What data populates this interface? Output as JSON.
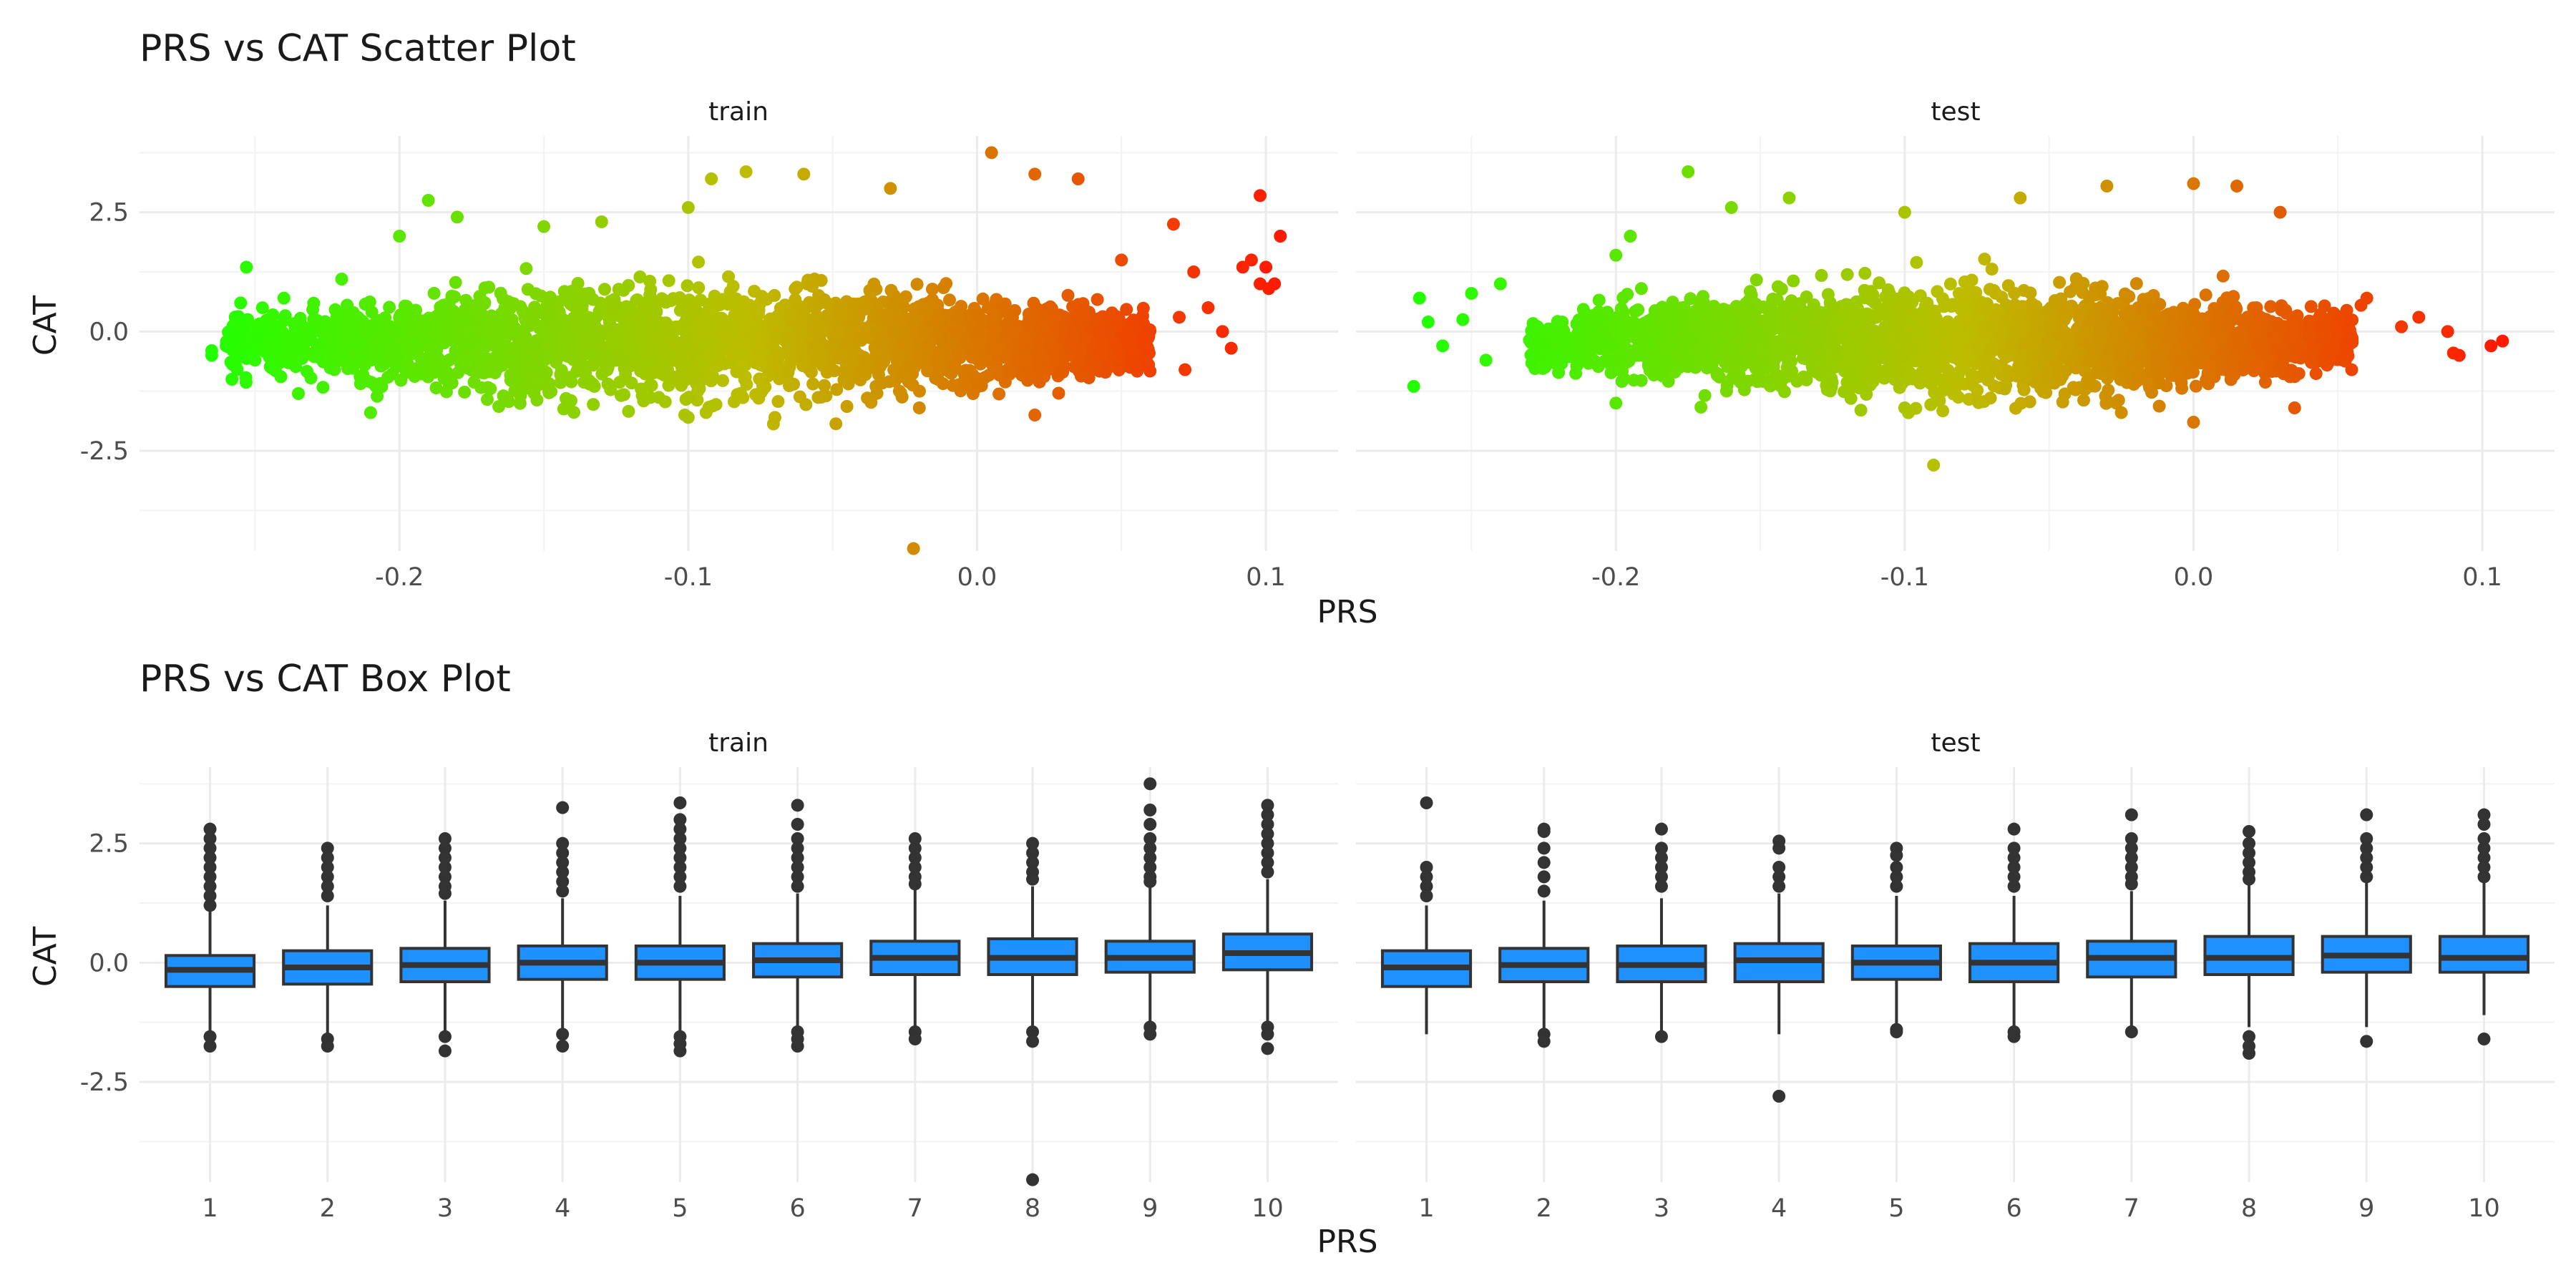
{
  "chart_data": [
    {
      "type": "scatter",
      "title": "PRS vs CAT Scatter Plot",
      "xlabel": "PRS",
      "ylabel": "CAT",
      "ylim": [
        -4.6,
        4.1
      ],
      "y_ticks": [
        "2.5",
        "0.0",
        "-2.5"
      ],
      "y_tick_values": [
        2.5,
        0.0,
        -2.5
      ],
      "grid": true,
      "color_scale": {
        "low": "#22ff00",
        "mid": "#bdbd00",
        "high": "#ff1a00",
        "domain": [
          -0.265,
          0.105
        ]
      },
      "panels": [
        {
          "label": "train",
          "xlim": [
            -0.29,
            0.125
          ],
          "x_ticks": [
            "-0.2",
            "-0.1",
            "0.0",
            "0.1"
          ],
          "x_tick_values": [
            -0.2,
            -0.1,
            0.0,
            0.1
          ],
          "cloud": {
            "x_range": [
              -0.26,
              0.06
            ],
            "y_center": -0.2,
            "y_spread": 0.95
          },
          "points": [
            {
              "x": -0.265,
              "y": -0.4
            },
            {
              "x": -0.265,
              "y": -0.5
            },
            {
              "x": -0.26,
              "y": -0.3
            },
            {
              "x": -0.258,
              "y": -1.0
            },
            {
              "x": -0.255,
              "y": 0.6
            },
            {
              "x": -0.253,
              "y": 1.35
            },
            {
              "x": -0.25,
              "y": -0.6
            },
            {
              "x": -0.24,
              "y": 0.7
            },
            {
              "x": -0.235,
              "y": -1.3
            },
            {
              "x": -0.22,
              "y": 1.1
            },
            {
              "x": -0.2,
              "y": 2.0
            },
            {
              "x": -0.21,
              "y": -1.7
            },
            {
              "x": -0.19,
              "y": 2.75
            },
            {
              "x": -0.18,
              "y": 2.4
            },
            {
              "x": -0.15,
              "y": 2.2
            },
            {
              "x": -0.13,
              "y": 2.3
            },
            {
              "x": -0.1,
              "y": 2.6
            },
            {
              "x": -0.1,
              "y": -1.8
            },
            {
              "x": -0.092,
              "y": 3.2
            },
            {
              "x": -0.08,
              "y": 3.35
            },
            {
              "x": -0.06,
              "y": 3.3
            },
            {
              "x": -0.07,
              "y": -1.8
            },
            {
              "x": -0.03,
              "y": 3.0
            },
            {
              "x": -0.02,
              "y": -1.6
            },
            {
              "x": -0.022,
              "y": -4.55
            },
            {
              "x": 0.005,
              "y": 3.75
            },
            {
              "x": 0.02,
              "y": 3.3
            },
            {
              "x": 0.02,
              "y": -1.75
            },
            {
              "x": 0.035,
              "y": 3.2
            },
            {
              "x": 0.05,
              "y": 1.5
            },
            {
              "x": 0.055,
              "y": -0.7
            },
            {
              "x": 0.068,
              "y": 2.25
            },
            {
              "x": 0.07,
              "y": 0.3
            },
            {
              "x": 0.072,
              "y": -0.8
            },
            {
              "x": 0.075,
              "y": 1.25
            },
            {
              "x": 0.08,
              "y": 0.5
            },
            {
              "x": 0.085,
              "y": 0.0
            },
            {
              "x": 0.088,
              "y": -0.35
            },
            {
              "x": 0.092,
              "y": 1.35
            },
            {
              "x": 0.095,
              "y": 1.5
            },
            {
              "x": 0.098,
              "y": 2.85
            },
            {
              "x": 0.098,
              "y": 1.0
            },
            {
              "x": 0.1,
              "y": 1.35
            },
            {
              "x": 0.101,
              "y": 0.9
            },
            {
              "x": 0.103,
              "y": 1.0
            },
            {
              "x": 0.105,
              "y": 2.0
            }
          ]
        },
        {
          "label": "test",
          "xlim": [
            -0.29,
            0.125
          ],
          "x_ticks": [
            "-0.2",
            "-0.1",
            "0.0",
            "0.1"
          ],
          "x_tick_values": [
            -0.2,
            -0.1,
            0.0,
            0.1
          ],
          "cloud": {
            "x_range": [
              -0.23,
              0.055
            ],
            "y_center": -0.2,
            "y_spread": 0.9
          },
          "points": [
            {
              "x": -0.27,
              "y": -1.15
            },
            {
              "x": -0.268,
              "y": 0.7
            },
            {
              "x": -0.265,
              "y": 0.2
            },
            {
              "x": -0.26,
              "y": -0.3
            },
            {
              "x": -0.253,
              "y": 0.25
            },
            {
              "x": -0.25,
              "y": 0.8
            },
            {
              "x": -0.245,
              "y": -0.6
            },
            {
              "x": -0.24,
              "y": 1.0
            },
            {
              "x": -0.2,
              "y": 1.6
            },
            {
              "x": -0.195,
              "y": 2.0
            },
            {
              "x": -0.2,
              "y": -1.5
            },
            {
              "x": -0.175,
              "y": 3.35
            },
            {
              "x": -0.16,
              "y": 2.6
            },
            {
              "x": -0.14,
              "y": 2.8
            },
            {
              "x": -0.1,
              "y": 2.5
            },
            {
              "x": -0.1,
              "y": -1.6
            },
            {
              "x": -0.09,
              "y": -2.8
            },
            {
              "x": -0.06,
              "y": 2.8
            },
            {
              "x": -0.03,
              "y": 3.05
            },
            {
              "x": -0.025,
              "y": -1.7
            },
            {
              "x": 0.0,
              "y": 3.1
            },
            {
              "x": 0.0,
              "y": -1.9
            },
            {
              "x": 0.015,
              "y": 3.05
            },
            {
              "x": 0.03,
              "y": 2.5
            },
            {
              "x": 0.035,
              "y": -1.6
            },
            {
              "x": 0.06,
              "y": 0.7
            },
            {
              "x": 0.058,
              "y": 0.55
            },
            {
              "x": 0.072,
              "y": 0.1
            },
            {
              "x": 0.078,
              "y": 0.3
            },
            {
              "x": 0.088,
              "y": 0.0
            },
            {
              "x": 0.09,
              "y": -0.45
            },
            {
              "x": 0.092,
              "y": -0.5
            },
            {
              "x": 0.103,
              "y": -0.3
            },
            {
              "x": 0.107,
              "y": -0.2
            }
          ]
        }
      ]
    },
    {
      "type": "box",
      "title": "PRS vs CAT Box Plot",
      "xlabel": "PRS",
      "ylabel": "CAT",
      "ylim": [
        -4.6,
        4.1
      ],
      "y_ticks": [
        "2.5",
        "0.0",
        "-2.5"
      ],
      "y_tick_values": [
        2.5,
        0.0,
        -2.5
      ],
      "categories": [
        "1",
        "2",
        "3",
        "4",
        "5",
        "6",
        "7",
        "8",
        "9",
        "10"
      ],
      "fill": "#1e90ff",
      "panels": [
        {
          "label": "train",
          "boxes": [
            {
              "q1": -0.5,
              "median": -0.15,
              "q3": 0.15,
              "whisker_low": -1.45,
              "whisker_high": 1.1,
              "outliers": [
                2.8,
                2.6,
                2.4,
                2.2,
                2.0,
                1.8,
                1.6,
                1.4,
                1.2,
                -1.55,
                -1.75
              ]
            },
            {
              "q1": -0.45,
              "median": -0.1,
              "q3": 0.25,
              "whisker_low": -1.5,
              "whisker_high": 1.2,
              "outliers": [
                2.4,
                2.2,
                2.0,
                1.8,
                1.6,
                1.4,
                -1.6,
                -1.75
              ]
            },
            {
              "q1": -0.4,
              "median": -0.05,
              "q3": 0.3,
              "whisker_low": -1.45,
              "whisker_high": 1.3,
              "outliers": [
                2.6,
                2.4,
                2.2,
                2.0,
                1.8,
                1.6,
                1.45,
                -1.55,
                -1.85
              ]
            },
            {
              "q1": -0.35,
              "median": 0.0,
              "q3": 0.35,
              "whisker_low": -1.4,
              "whisker_high": 1.35,
              "outliers": [
                3.25,
                2.5,
                2.3,
                2.1,
                1.9,
                1.7,
                1.5,
                -1.5,
                -1.75
              ]
            },
            {
              "q1": -0.35,
              "median": 0.0,
              "q3": 0.35,
              "whisker_low": -1.45,
              "whisker_high": 1.4,
              "outliers": [
                3.35,
                3.0,
                2.8,
                2.6,
                2.4,
                2.2,
                2.0,
                1.8,
                1.6,
                -1.55,
                -1.7,
                -1.85
              ]
            },
            {
              "q1": -0.3,
              "median": 0.05,
              "q3": 0.4,
              "whisker_low": -1.4,
              "whisker_high": 1.45,
              "outliers": [
                3.3,
                2.9,
                2.6,
                2.4,
                2.2,
                2.0,
                1.8,
                1.6,
                -1.45,
                -1.6,
                -1.75
              ]
            },
            {
              "q1": -0.25,
              "median": 0.1,
              "q3": 0.45,
              "whisker_low": -1.35,
              "whisker_high": 1.55,
              "outliers": [
                2.6,
                2.4,
                2.2,
                2.0,
                1.8,
                1.65,
                -1.45,
                -1.6
              ]
            },
            {
              "q1": -0.25,
              "median": 0.1,
              "q3": 0.5,
              "whisker_low": -1.35,
              "whisker_high": 1.6,
              "outliers": [
                2.5,
                2.3,
                2.1,
                1.9,
                1.75,
                -1.45,
                -1.65,
                -4.55
              ]
            },
            {
              "q1": -0.2,
              "median": 0.1,
              "q3": 0.45,
              "whisker_low": -1.3,
              "whisker_high": 1.6,
              "outliers": [
                3.75,
                3.2,
                2.9,
                2.6,
                2.4,
                2.2,
                2.0,
                1.8,
                1.7,
                -1.35,
                -1.5
              ]
            },
            {
              "q1": -0.15,
              "median": 0.2,
              "q3": 0.6,
              "whisker_low": -1.25,
              "whisker_high": 1.75,
              "outliers": [
                3.3,
                3.1,
                2.9,
                2.7,
                2.5,
                2.3,
                2.1,
                1.9,
                -1.35,
                -1.5,
                -1.8
              ]
            }
          ]
        },
        {
          "label": "test",
          "boxes": [
            {
              "q1": -0.5,
              "median": -0.1,
              "q3": 0.25,
              "whisker_low": -1.5,
              "whisker_high": 1.2,
              "outliers": [
                3.35,
                2.0,
                1.8,
                1.6,
                1.4
              ]
            },
            {
              "q1": -0.4,
              "median": -0.05,
              "q3": 0.3,
              "whisker_low": -1.45,
              "whisker_high": 1.3,
              "outliers": [
                2.8,
                2.75,
                2.4,
                2.1,
                1.8,
                1.5,
                -1.5,
                -1.65
              ]
            },
            {
              "q1": -0.4,
              "median": -0.05,
              "q3": 0.35,
              "whisker_low": -1.45,
              "whisker_high": 1.35,
              "outliers": [
                2.8,
                2.4,
                2.2,
                2.0,
                1.8,
                1.6,
                -1.55
              ]
            },
            {
              "q1": -0.4,
              "median": 0.05,
              "q3": 0.4,
              "whisker_low": -1.5,
              "whisker_high": 1.45,
              "outliers": [
                2.55,
                2.4,
                2.0,
                1.8,
                1.6,
                -2.8
              ]
            },
            {
              "q1": -0.35,
              "median": 0.0,
              "q3": 0.35,
              "whisker_low": -1.35,
              "whisker_high": 1.4,
              "outliers": [
                2.4,
                2.25,
                2.0,
                1.8,
                1.6,
                -1.4,
                -1.45
              ]
            },
            {
              "q1": -0.4,
              "median": 0.0,
              "q3": 0.4,
              "whisker_low": -1.4,
              "whisker_high": 1.4,
              "outliers": [
                2.8,
                2.4,
                2.2,
                2.0,
                1.8,
                1.6,
                -1.45,
                -1.55
              ]
            },
            {
              "q1": -0.3,
              "median": 0.1,
              "q3": 0.45,
              "whisker_low": -1.4,
              "whisker_high": 1.5,
              "outliers": [
                3.1,
                2.6,
                2.4,
                2.2,
                2.0,
                1.8,
                1.65,
                -1.45
              ]
            },
            {
              "q1": -0.25,
              "median": 0.1,
              "q3": 0.55,
              "whisker_low": -1.35,
              "whisker_high": 1.65,
              "outliers": [
                2.75,
                2.5,
                2.3,
                2.1,
                1.9,
                1.75,
                -1.55,
                -1.75,
                -1.9
              ]
            },
            {
              "q1": -0.2,
              "median": 0.15,
              "q3": 0.55,
              "whisker_low": -1.35,
              "whisker_high": 1.7,
              "outliers": [
                3.1,
                2.6,
                2.4,
                2.2,
                2.0,
                1.8,
                -1.65
              ]
            },
            {
              "q1": -0.2,
              "median": 0.1,
              "q3": 0.55,
              "whisker_low": -1.1,
              "whisker_high": 1.7,
              "outliers": [
                3.1,
                2.9,
                2.6,
                2.4,
                2.2,
                2.0,
                1.8,
                -1.6
              ]
            }
          ]
        }
      ]
    }
  ]
}
